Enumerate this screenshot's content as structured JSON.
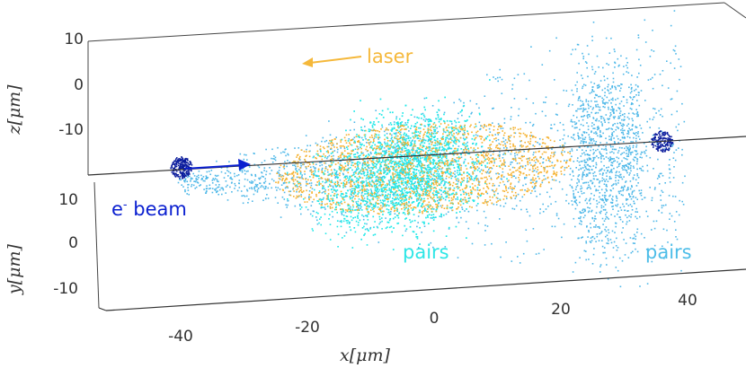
{
  "chart_data": {
    "type": "scatter",
    "title": "",
    "axes": {
      "x": {
        "label_var": "x",
        "label_unit": "μm",
        "ticks": [
          -40,
          -20,
          0,
          20,
          40
        ],
        "range": [
          -50,
          50
        ]
      },
      "y": {
        "label_var": "y",
        "label_unit": "μm",
        "ticks": [
          10,
          0,
          -10
        ],
        "range": [
          -12,
          15
        ]
      },
      "z": {
        "label_var": "z",
        "label_unit": "μm",
        "ticks": [
          10,
          0,
          -10
        ],
        "range": [
          -15,
          13
        ]
      }
    },
    "grid": false,
    "box": true,
    "annotations": {
      "laser": {
        "text": "laser",
        "color": "#f5b83a",
        "arrow_direction": "-x"
      },
      "beam": {
        "prefix": "e",
        "superscript": "-",
        "suffix": " beam",
        "color": "#0a1fd0",
        "arrow_direction": "+x"
      },
      "pairs_center": {
        "text": "pairs",
        "color": "#2ee6e6"
      },
      "pairs_right": {
        "text": "pairs",
        "color": "#4dbde8"
      }
    },
    "series": [
      {
        "name": "laser",
        "color": "#f5b12e",
        "center_x": 0,
        "half_length_x": 22,
        "radius_transverse": 8
      },
      {
        "name": "e- beam",
        "color": "#0a1b9c",
        "center_x": -38,
        "radius": 1.5
      },
      {
        "name": "pairs",
        "color": "#22e8e8",
        "center_x": -3,
        "half_length_x": 17,
        "radius_transverse": 12
      },
      {
        "name": "pairs",
        "color": "#4fb8e8",
        "center_x": 35,
        "spread_x": 90,
        "radius_transverse": 14
      }
    ]
  }
}
